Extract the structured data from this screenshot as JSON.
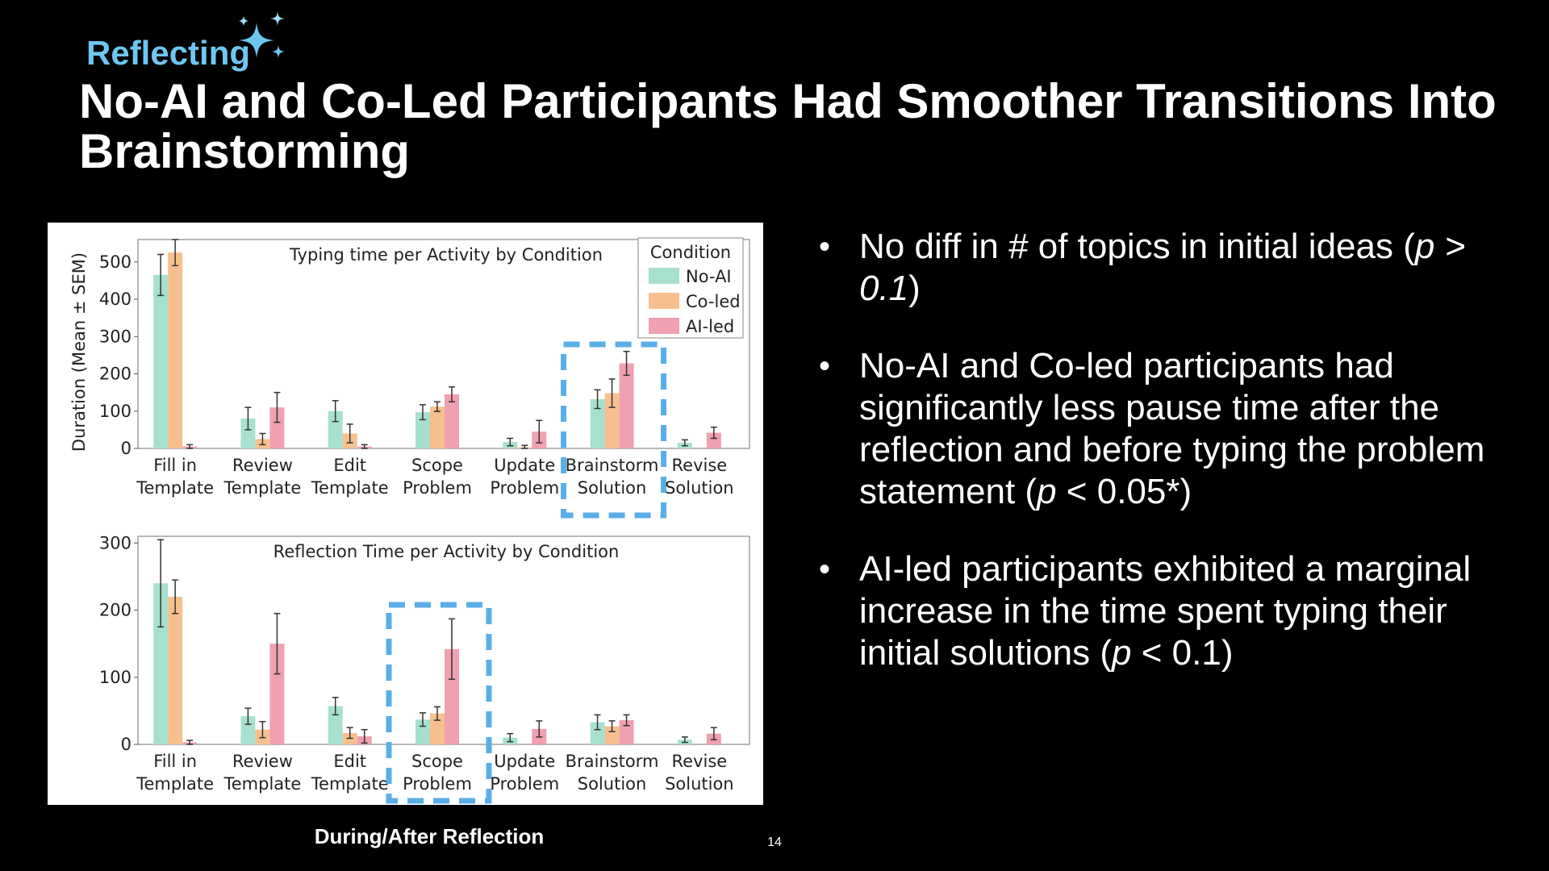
{
  "kicker": "Reflecting",
  "title": "No-AI and Co-Led Participants Had Smoother Transitions Into Brainstorming",
  "caption": "During/After Reflection",
  "page_number": "14",
  "colors": {
    "background": "#000000",
    "kicker": "#6ec7f0",
    "highlight_box": "#5aaee8",
    "no_ai": "#a8e0cf",
    "co_led": "#f6c08e",
    "ai_led": "#f0a0b0"
  },
  "icons": {
    "sparkle": "sparkle-icon"
  },
  "bullets": [
    {
      "segments": [
        {
          "text": "No diff in # of topics in initial ideas ("
        },
        {
          "text": "p > 0.1",
          "italic": true
        },
        {
          "text": ")"
        }
      ]
    },
    {
      "segments": [
        {
          "text": "No-AI and Co-led participants had significantly less pause time after the reflection and before typing the problem statement ("
        },
        {
          "text": "p",
          "italic": true
        },
        {
          "text": " < 0.05*)"
        }
      ]
    },
    {
      "segments": [
        {
          "text": "AI-led participants exhibited a marginal increase in the time spent typing their initial solutions ("
        },
        {
          "text": "p",
          "italic": true
        },
        {
          "text": " < 0.1)"
        }
      ]
    }
  ],
  "chart_data": [
    {
      "type": "bar",
      "title": "Typing time per Activity by Condition",
      "ylabel": "Duration (Mean ± SEM)",
      "ylim": [
        0,
        560
      ],
      "yticks": [
        0,
        100,
        200,
        300,
        400,
        500
      ],
      "categories": [
        "Fill in\nTemplate",
        "Review\nTemplate",
        "Edit\nTemplate",
        "Scope\nProblem",
        "Update\nProblem",
        "Brainstorm\nSolution",
        "Revise\nSolution"
      ],
      "legend": {
        "title": "Condition",
        "position": "top-right"
      },
      "highlight": "Brainstorm\nSolution",
      "series": [
        {
          "name": "No-AI",
          "values": [
            465,
            80,
            100,
            97,
            17,
            132,
            15
          ],
          "errors": [
            55,
            30,
            28,
            20,
            10,
            25,
            8
          ]
        },
        {
          "name": "Co-led",
          "values": [
            525,
            25,
            40,
            112,
            3,
            148,
            0
          ],
          "errors": [
            35,
            15,
            25,
            13,
            5,
            38,
            0
          ]
        },
        {
          "name": "AI-led",
          "values": [
            5,
            110,
            5,
            145,
            45,
            228,
            42
          ],
          "errors": [
            5,
            40,
            5,
            20,
            30,
            32,
            15
          ]
        }
      ]
    },
    {
      "type": "bar",
      "title": "Reflection Time per Activity by Condition",
      "ylim": [
        0,
        310
      ],
      "yticks": [
        0,
        100,
        200,
        300
      ],
      "categories": [
        "Fill in\nTemplate",
        "Review\nTemplate",
        "Edit\nTemplate",
        "Scope\nProblem",
        "Update\nProblem",
        "Brainstorm\nSolution",
        "Revise\nSolution"
      ],
      "highlight": "Scope\nProblem",
      "series": [
        {
          "name": "No-AI",
          "values": [
            240,
            42,
            57,
            37,
            10,
            33,
            7
          ],
          "errors": [
            65,
            12,
            13,
            10,
            6,
            11,
            4
          ]
        },
        {
          "name": "Co-led",
          "values": [
            220,
            22,
            17,
            46,
            0,
            27,
            0
          ],
          "errors": [
            25,
            12,
            8,
            10,
            0,
            8,
            0
          ]
        },
        {
          "name": "AI-led",
          "values": [
            3,
            150,
            12,
            142,
            23,
            36,
            16
          ],
          "errors": [
            3,
            45,
            10,
            45,
            12,
            8,
            9
          ]
        }
      ]
    }
  ]
}
